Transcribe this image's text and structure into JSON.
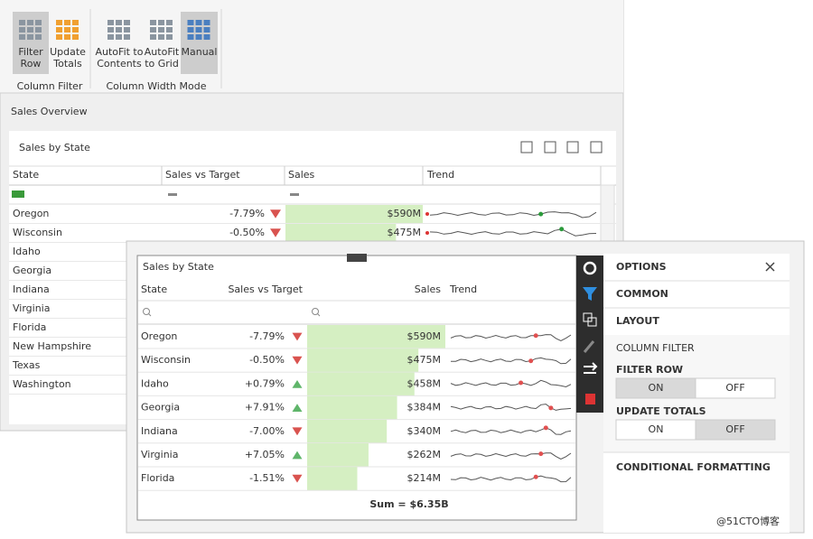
{
  "ribbon": {
    "buttons": [
      [
        "Filter",
        "Row"
      ],
      [
        "Update",
        "Totals"
      ],
      [
        "AutoFit to",
        "Contents"
      ],
      [
        "AutoFit",
        "to Grid"
      ],
      [
        "Manual"
      ]
    ],
    "groups": [
      "Column Filter",
      "Column Width Mode"
    ]
  },
  "page_title": "Sales Overview",
  "back_grid": {
    "title": "Sales by State",
    "columns": [
      "State",
      "Sales vs Target",
      "Sales",
      "Trend"
    ],
    "rows": [
      {
        "state": "Oregon",
        "vs_target": {
          "value": -7.79,
          "label": "-7.79%"
        },
        "sales": {
          "value": 590,
          "label": "$590M"
        }
      },
      {
        "state": "Wisconsin",
        "vs_target": {
          "value": -0.5,
          "label": "-0.50%"
        },
        "sales": {
          "value": 475,
          "label": "$475M"
        }
      }
    ],
    "more_states": [
      "Idaho",
      "Georgia",
      "Indiana",
      "Virginia",
      "Florida",
      "New Hampshire",
      "Texas",
      "Washington"
    ]
  },
  "front_grid": {
    "title": "Sales by State",
    "columns": [
      "State",
      "Sales vs Target",
      "Sales",
      "Trend"
    ],
    "rows": [
      {
        "state": "Oregon",
        "vs_target": {
          "value": -7.79,
          "label": "-7.79%"
        },
        "sales": {
          "value": 590,
          "label": "$590M"
        }
      },
      {
        "state": "Wisconsin",
        "vs_target": {
          "value": -0.5,
          "label": "-0.50%"
        },
        "sales": {
          "value": 475,
          "label": "$475M"
        }
      },
      {
        "state": "Idaho",
        "vs_target": {
          "value": 0.79,
          "label": "+0.79%"
        },
        "sales": {
          "value": 458,
          "label": "$458M"
        }
      },
      {
        "state": "Georgia",
        "vs_target": {
          "value": 7.91,
          "label": "+7.91%"
        },
        "sales": {
          "value": 384,
          "label": "$384M"
        }
      },
      {
        "state": "Indiana",
        "vs_target": {
          "value": -7,
          "label": "-7.00%"
        },
        "sales": {
          "value": 340,
          "label": "$340M"
        }
      },
      {
        "state": "Virginia",
        "vs_target": {
          "value": 7.05,
          "label": "+7.05%"
        },
        "sales": {
          "value": 262,
          "label": "$262M"
        }
      },
      {
        "state": "Florida",
        "vs_target": {
          "value": -1.51,
          "label": "-1.51%"
        },
        "sales": {
          "value": 214,
          "label": "$214M"
        }
      }
    ],
    "total": "Sum = $6.35B"
  },
  "options": {
    "title": "OPTIONS",
    "sections": [
      "COMMON",
      "LAYOUT"
    ],
    "column_filter": "COLUMN FILTER",
    "filter_row": {
      "label": "FILTER ROW",
      "choices": [
        "ON",
        "OFF"
      ]
    },
    "update_totals": {
      "label": "UPDATE TOTALS",
      "choices": [
        "ON",
        "OFF"
      ]
    },
    "conditional": "CONDITIONAL FORMATTING"
  },
  "watermark": "@51CTO博客"
}
